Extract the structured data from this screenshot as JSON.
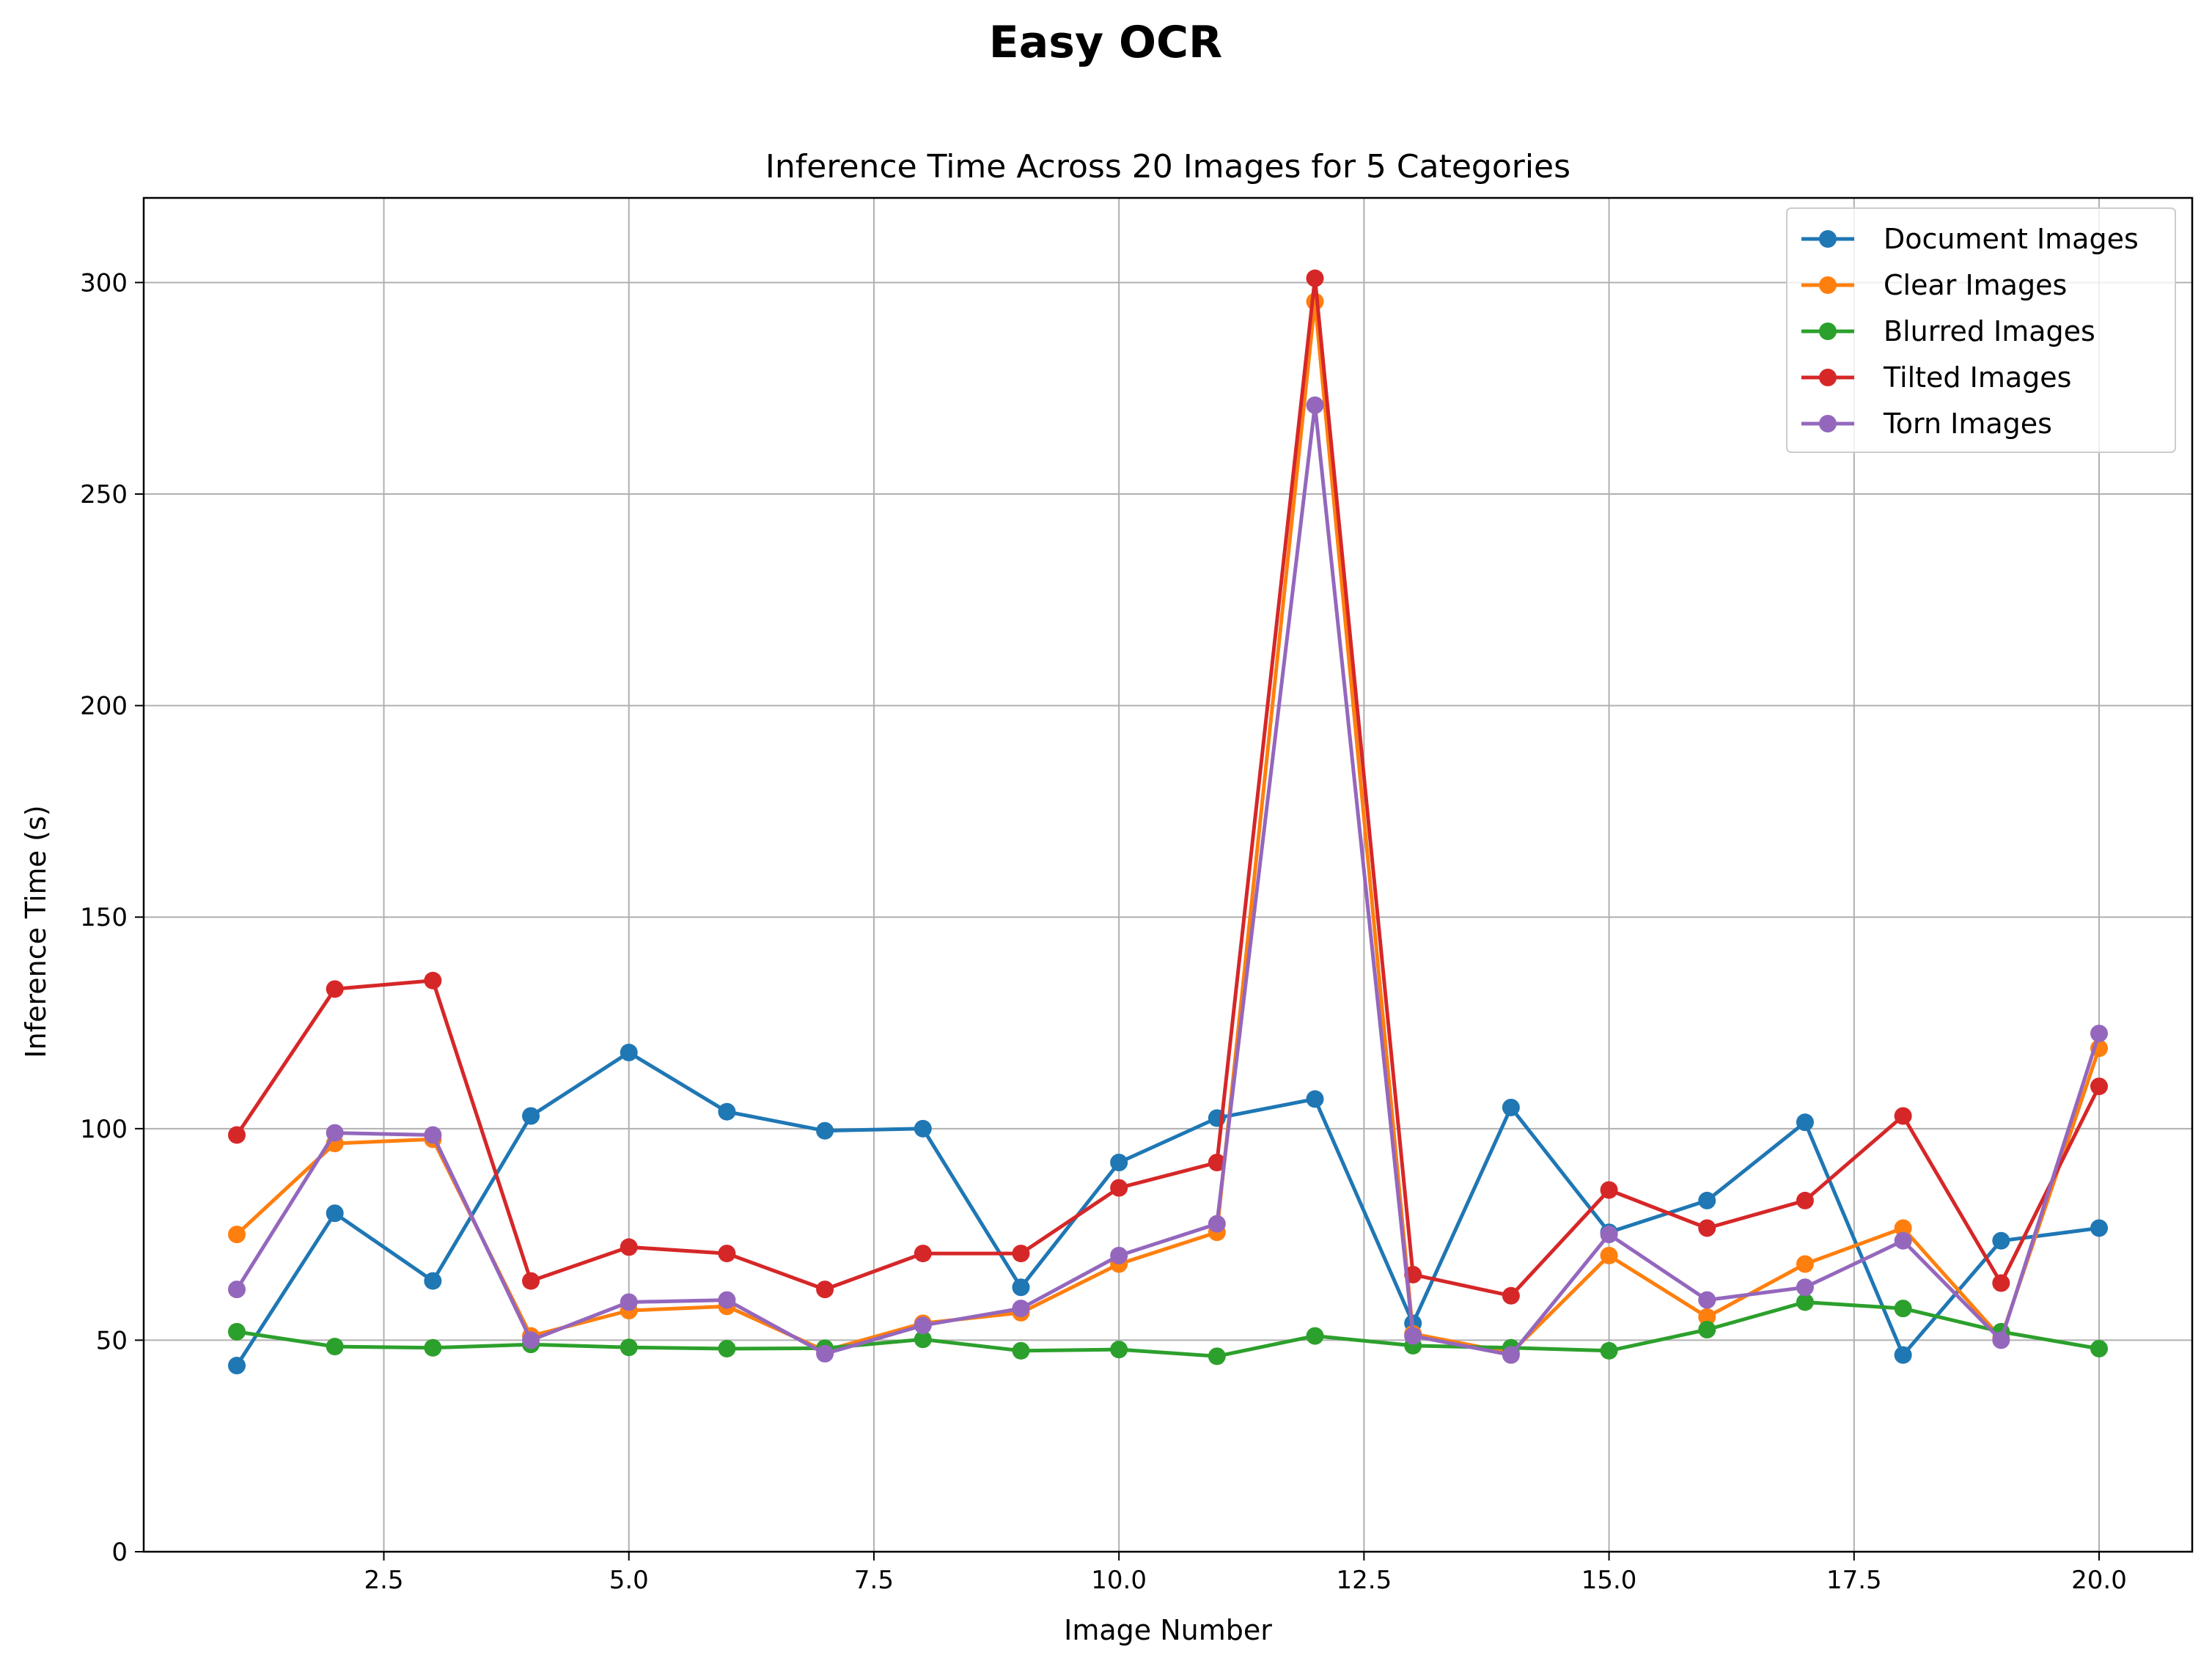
{
  "suptitle": "Easy OCR",
  "chart_data": {
    "type": "line",
    "title": "Inference Time Across 20 Images for 5 Categories",
    "xlabel": "Image Number",
    "ylabel": "Inference Time (s)",
    "xlim": [
      0.05,
      20.95
    ],
    "ylim": [
      0,
      320
    ],
    "xticks": [
      2.5,
      5.0,
      7.5,
      10.0,
      12.5,
      15.0,
      17.5,
      20.0
    ],
    "xtick_labels": [
      "2.5",
      "5.0",
      "7.5",
      "10.0",
      "12.5",
      "15.0",
      "17.5",
      "20.0"
    ],
    "yticks": [
      0,
      50,
      100,
      150,
      200,
      250,
      300
    ],
    "ytick_labels": [
      "0",
      "50",
      "100",
      "150",
      "200",
      "250",
      "300"
    ],
    "grid": true,
    "legend_position": "top-right",
    "x": [
      1,
      2,
      3,
      4,
      5,
      6,
      7,
      8,
      9,
      10,
      11,
      12,
      13,
      14,
      15,
      16,
      17,
      18,
      19,
      20
    ],
    "series": [
      {
        "name": "Document Images",
        "color": "#1f77b4",
        "values": [
          44,
          80,
          64,
          103,
          118,
          104,
          99.5,
          100,
          62.5,
          92,
          102.5,
          107,
          54,
          105,
          75.5,
          83,
          101.5,
          46.5,
          73.5,
          76.5
        ]
      },
      {
        "name": "Clear Images",
        "color": "#ff7f0e",
        "values": [
          75,
          96.5,
          97.5,
          51,
          57,
          58,
          47.5,
          54,
          56.5,
          68,
          75.5,
          295.5,
          51.5,
          47,
          70,
          55.5,
          68,
          76.5,
          50.5,
          119
        ]
      },
      {
        "name": "Blurred Images",
        "color": "#2ca02c",
        "values": [
          52,
          48.5,
          48.2,
          49,
          48.3,
          48,
          48.1,
          50.2,
          47.5,
          47.8,
          46.2,
          51,
          48.7,
          48.2,
          47.5,
          52.5,
          59,
          57.5,
          52,
          48
        ]
      },
      {
        "name": "Tilted Images",
        "color": "#d62728",
        "values": [
          98.5,
          133,
          135,
          64,
          72,
          70.5,
          62,
          70.5,
          70.5,
          86,
          92,
          301,
          65.5,
          60.5,
          85.5,
          76.5,
          83,
          103,
          63.5,
          110
        ]
      },
      {
        "name": "Torn Images",
        "color": "#9467bd",
        "values": [
          62,
          99,
          98.5,
          50,
          59,
          59.5,
          46.8,
          53.5,
          57.5,
          70,
          77.5,
          271,
          51,
          46.5,
          75,
          59.5,
          62.5,
          73.5,
          50,
          122.5
        ]
      }
    ]
  }
}
